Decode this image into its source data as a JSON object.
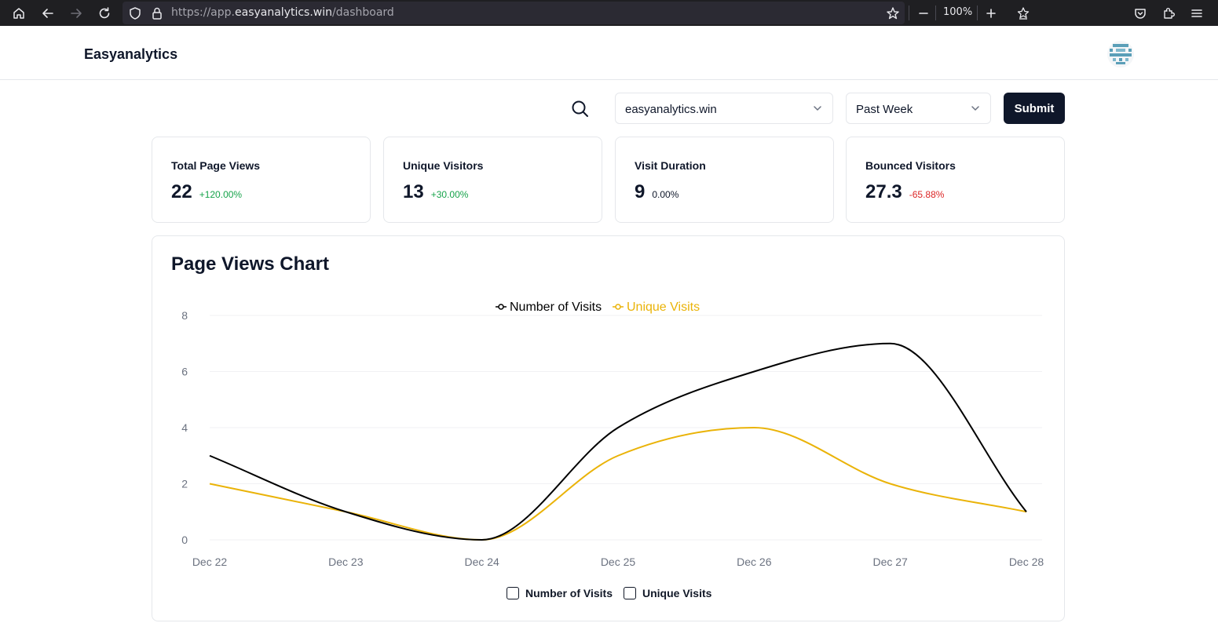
{
  "browser": {
    "url_prefix": "https://app.",
    "url_host": "easyanalytics.win",
    "url_path": "/dashboard",
    "zoom": "100%"
  },
  "header": {
    "brand": "Easyanalytics"
  },
  "filters": {
    "site_value": "easyanalytics.win",
    "range_value": "Past Week",
    "submit_label": "Submit"
  },
  "stats": [
    {
      "title": "Total Page Views",
      "value": "22",
      "delta": "+120.00%",
      "trend": "up"
    },
    {
      "title": "Unique Visitors",
      "value": "13",
      "delta": "+30.00%",
      "trend": "up"
    },
    {
      "title": "Visit Duration",
      "value": "9",
      "delta": "0.00%",
      "trend": "flat"
    },
    {
      "title": "Bounced Visitors",
      "value": "27.3",
      "delta": "-65.88%",
      "trend": "down"
    }
  ],
  "colors": {
    "up": "#16a34a",
    "down": "#dc2626",
    "flat": "#0f172a",
    "series_visits": "#000000",
    "series_unique": "#eab308",
    "grid": "#f1f1f3",
    "tick": "#6b7280"
  },
  "chart_title": "Page Views Chart",
  "bottom_legend": {
    "visits_label": "Number of Visits",
    "unique_label": "Unique Visits"
  },
  "chart_data": {
    "type": "line",
    "categories": [
      "Dec 22",
      "Dec 23",
      "Dec 24",
      "Dec 25",
      "Dec 26",
      "Dec 27",
      "Dec 28"
    ],
    "series": [
      {
        "name": "Number of Visits",
        "values": [
          3,
          1,
          0,
          4,
          6,
          7,
          1
        ]
      },
      {
        "name": "Unique Visits",
        "values": [
          2,
          1,
          0,
          3,
          4,
          2,
          1
        ]
      }
    ],
    "ylim": [
      0,
      8
    ],
    "yticks": [
      0,
      2,
      4,
      6,
      8
    ],
    "grid": true,
    "legend": "top-center",
    "curve": "smooth"
  }
}
